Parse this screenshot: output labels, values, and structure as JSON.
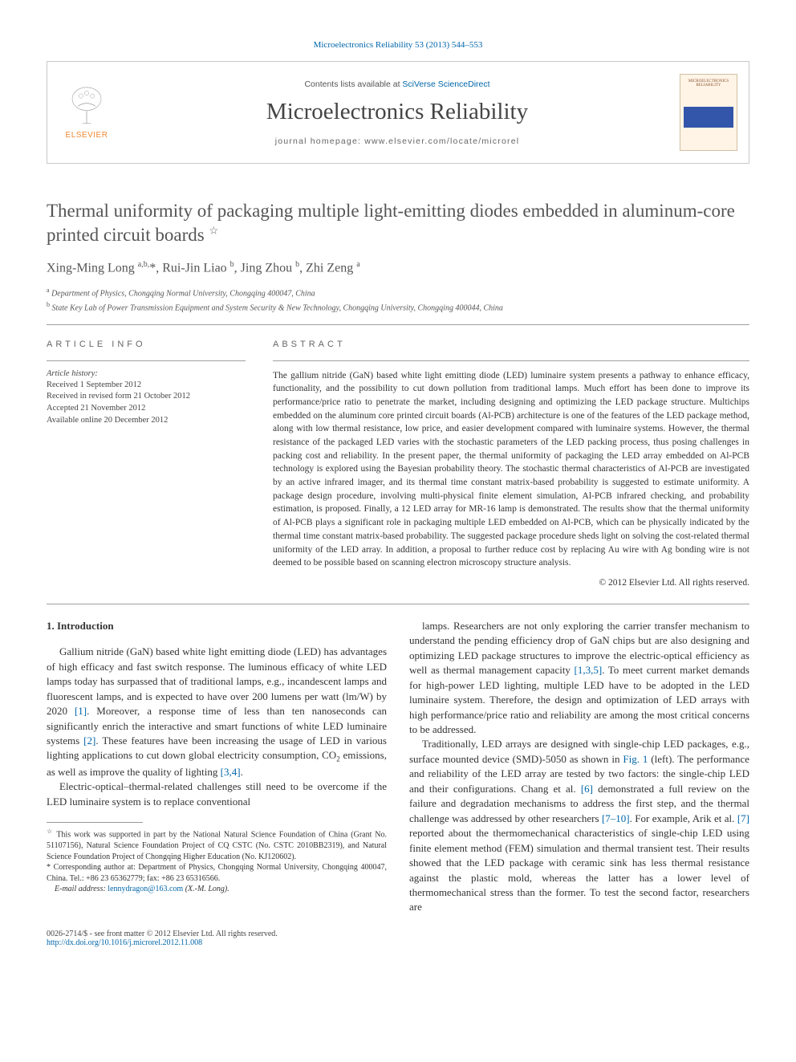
{
  "journal_ref": "Microelectronics Reliability 53 (2013) 544–553",
  "header": {
    "contents_prefix": "Contents lists available at ",
    "contents_link": "SciVerse ScienceDirect",
    "journal_name": "Microelectronics Reliability",
    "homepage_prefix": "journal homepage: ",
    "homepage_url": "www.elsevier.com/locate/microrel",
    "publisher_name": "ELSEVIER",
    "cover_label": "MICROELECTRONICS RELIABILITY"
  },
  "title": "Thermal uniformity of packaging multiple light-emitting diodes embedded in aluminum-core printed circuit boards",
  "title_star": "☆",
  "authors_html": "Xing-Ming Long <sup>a,b,</sup>*, Rui-Jin Liao <sup>b</sup>, Jing Zhou <sup>b</sup>, Zhi Zeng <sup>a</sup>",
  "affiliations": [
    {
      "sup": "a",
      "text": "Department of Physics, Chongqing Normal University, Chongqing 400047, China"
    },
    {
      "sup": "b",
      "text": "State Key Lab of Power Transmission Equipment and System Security & New Technology, Chongqing University, Chongqing 400044, China"
    }
  ],
  "info": {
    "label": "ARTICLE INFO",
    "history_label": "Article history:",
    "history": [
      "Received 1 September 2012",
      "Received in revised form 21 October 2012",
      "Accepted 21 November 2012",
      "Available online 20 December 2012"
    ]
  },
  "abstract": {
    "label": "ABSTRACT",
    "text": "The gallium nitride (GaN) based white light emitting diode (LED) luminaire system presents a pathway to enhance efficacy, functionality, and the possibility to cut down pollution from traditional lamps. Much effort has been done to improve its performance/price ratio to penetrate the market, including designing and optimizing the LED package structure. Multichips embedded on the aluminum core printed circuit boards (Al-PCB) architecture is one of the features of the LED package method, along with low thermal resistance, low price, and easier development compared with luminaire systems. However, the thermal resistance of the packaged LED varies with the stochastic parameters of the LED packing process, thus posing challenges in packing cost and reliability. In the present paper, the thermal uniformity of packaging the LED array embedded on Al-PCB technology is explored using the Bayesian probability theory. The stochastic thermal characteristics of Al-PCB are investigated by an active infrared imager, and its thermal time constant matrix-based probability is suggested to estimate uniformity. A package design procedure, involving multi-physical finite element simulation, Al-PCB infrared checking, and probability estimation, is proposed. Finally, a 12 LED array for MR-16 lamp is demonstrated. The results show that the thermal uniformity of Al-PCB plays a significant role in packaging multiple LED embedded on Al-PCB, which can be physically indicated by the thermal time constant matrix-based probability. The suggested package procedure sheds light on solving the cost-related thermal uniformity of the LED array. In addition, a proposal to further reduce cost by replacing Au wire with Ag bonding wire is not deemed to be possible based on scanning electron microscopy structure analysis.",
    "copyright": "© 2012 Elsevier Ltd. All rights reserved."
  },
  "body": {
    "heading": "1. Introduction",
    "left": [
      "Gallium nitride (GaN) based white light emitting diode (LED) has advantages of high efficacy and fast switch response. The luminous efficacy of white LED lamps today has surpassed that of traditional lamps, e.g., incandescent lamps and fluorescent lamps, and is expected to have over 200 lumens per watt (lm/W) by 2020 [1]. Moreover, a response time of less than ten nanoseconds can significantly enrich the interactive and smart functions of white LED luminaire systems [2]. These features have been increasing the usage of LED in various lighting applications to cut down global electricity consumption, CO₂ emissions, as well as improve the quality of lighting [3,4].",
      "Electric-optical–thermal-related challenges still need to be overcome if the LED luminaire system is to replace conventional"
    ],
    "right": [
      "lamps. Researchers are not only exploring the carrier transfer mechanism to understand the pending efficiency drop of GaN chips but are also designing and optimizing LED package structures to improve the electric-optical efficiency as well as thermal management capacity [1,3,5]. To meet current market demands for high-power LED lighting, multiple LED have to be adopted in the LED luminaire system. Therefore, the design and optimization of LED arrays with high performance/price ratio and reliability are among the most critical concerns to be addressed.",
      "Traditionally, LED arrays are designed with single-chip LED packages, e.g., surface mounted device (SMD)-5050 as shown in Fig. 1 (left). The performance and reliability of the LED array are tested by two factors: the single-chip LED and their configurations. Chang et al. [6] demonstrated a full review on the failure and degradation mechanisms to address the first step, and the thermal challenge was addressed by other researchers [7–10]. For example, Arik et al. [7] reported about the thermomechanical characteristics of single-chip LED using finite element method (FEM) simulation and thermal transient test. Their results showed that the LED package with ceramic sink has less thermal resistance against the plastic mold, whereas the latter has a lower level of thermomechanical stress than the former. To test the second factor, researchers are"
    ]
  },
  "footnotes": {
    "funding": "This work was supported in part by the National Natural Science Foundation of China (Grant No. 51107156), Natural Science Foundation Project of CQ CSTC (No. CSTC 2010BB2319), and Natural Science Foundation Project of Chongqing Higher Education (No. KJ120602).",
    "corresponding": "Corresponding author at: Department of Physics, Chongqing Normal University, Chongqing 400047, China. Tel.: +86 23 65362779; fax: +86 23 65316566.",
    "email_label": "E-mail address:",
    "email": "lennydragon@163.com",
    "email_who": "(X.-M. Long)."
  },
  "bottom": {
    "issn": "0026-2714/$ - see front matter © 2012 Elsevier Ltd. All rights reserved.",
    "doi": "http://dx.doi.org/10.1016/j.microrel.2012.11.008"
  },
  "colors": {
    "link": "#0066aa",
    "elsevier": "#ee8833",
    "text": "#333333",
    "muted": "#555555",
    "border": "#c9c9c9"
  }
}
